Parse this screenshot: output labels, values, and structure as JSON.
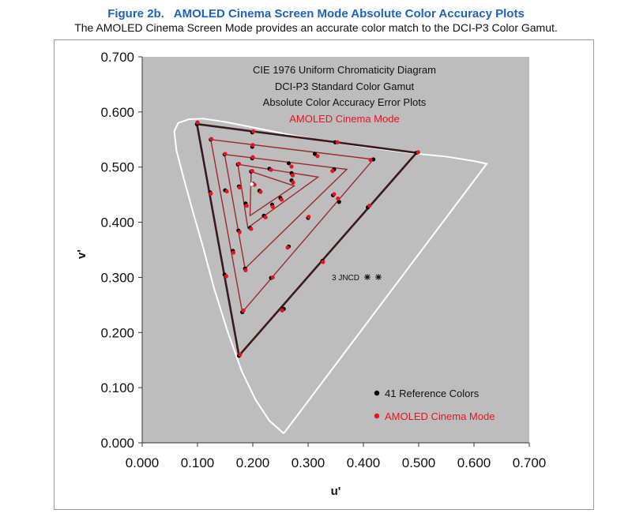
{
  "figure": {
    "title": "Figure 2b.   AMOLED Cinema Screen Mode Absolute Color Accuracy Plots",
    "subtitle": "The AMOLED Cinema Screen Mode provides an accurate color match to the DCI-P3 Color Gamut."
  },
  "colors": {
    "plot_background": "#bdbdbd",
    "reference": "#000000",
    "measured": "#e8141c",
    "locus": "#ffffff",
    "gamut_outline": "#3a1a1a"
  },
  "chart_data": {
    "type": "scatter",
    "title_lines": [
      "CIE 1976 Uniform Chromaticity Diagram",
      "DCI-P3 Standard Color Gamut",
      "Absolute Color Accuracy Error Plots"
    ],
    "title_highlight": "AMOLED Cinema Mode",
    "xlabel": "u'",
    "ylabel": "v'",
    "xlim": [
      0,
      0.7
    ],
    "ylim": [
      0,
      0.7
    ],
    "xticks": [
      "0.000",
      "0.100",
      "0.200",
      "0.300",
      "0.400",
      "0.500",
      "0.600",
      "0.700"
    ],
    "yticks": [
      "0.000",
      "0.100",
      "0.200",
      "0.300",
      "0.400",
      "0.500",
      "0.600",
      "0.700"
    ],
    "annotation": "3 JNCD",
    "legend": {
      "position": "bottom-right",
      "entries": [
        "41 Reference Colors",
        "AMOLED Cinema Mode"
      ]
    },
    "spectral_locus": [
      [
        0.256,
        0.017
      ],
      [
        0.23,
        0.04
      ],
      [
        0.205,
        0.078
      ],
      [
        0.18,
        0.13
      ],
      [
        0.155,
        0.2
      ],
      [
        0.13,
        0.28
      ],
      [
        0.11,
        0.355
      ],
      [
        0.09,
        0.425
      ],
      [
        0.075,
        0.48
      ],
      [
        0.062,
        0.53
      ],
      [
        0.058,
        0.565
      ],
      [
        0.065,
        0.58
      ],
      [
        0.085,
        0.587
      ],
      [
        0.11,
        0.588
      ],
      [
        0.15,
        0.582
      ],
      [
        0.2,
        0.572
      ],
      [
        0.26,
        0.56
      ],
      [
        0.33,
        0.547
      ],
      [
        0.4,
        0.537
      ],
      [
        0.46,
        0.529
      ],
      [
        0.5,
        0.524
      ],
      [
        0.55,
        0.519
      ],
      [
        0.6,
        0.511
      ],
      [
        0.623,
        0.506
      ],
      [
        0.256,
        0.017
      ]
    ],
    "gamut_triangles": [
      [
        [
          0.099,
          0.578
        ],
        [
          0.496,
          0.526
        ],
        [
          0.175,
          0.158
        ]
      ],
      [
        [
          0.124,
          0.55
        ],
        [
          0.418,
          0.514
        ],
        [
          0.181,
          0.237
        ]
      ],
      [
        [
          0.149,
          0.523
        ],
        [
          0.37,
          0.496
        ],
        [
          0.186,
          0.316
        ]
      ],
      [
        [
          0.173,
          0.505
        ],
        [
          0.318,
          0.482
        ],
        [
          0.191,
          0.39
        ]
      ],
      [
        [
          0.197,
          0.492
        ],
        [
          0.275,
          0.466
        ],
        [
          0.195,
          0.412
        ]
      ]
    ],
    "series": [
      {
        "name": "41 Reference Colors",
        "points": [
          [
            0.099,
            0.578
          ],
          [
            0.199,
            0.563
          ],
          [
            0.349,
            0.545
          ],
          [
            0.496,
            0.526
          ],
          [
            0.124,
            0.55
          ],
          [
            0.199,
            0.537
          ],
          [
            0.312,
            0.524
          ],
          [
            0.418,
            0.514
          ],
          [
            0.149,
            0.523
          ],
          [
            0.199,
            0.516
          ],
          [
            0.265,
            0.507
          ],
          [
            0.347,
            0.496
          ],
          [
            0.173,
            0.505
          ],
          [
            0.23,
            0.497
          ],
          [
            0.27,
            0.489
          ],
          [
            0.197,
            0.492
          ],
          [
            0.27,
            0.476
          ],
          [
            0.212,
            0.457
          ],
          [
            0.25,
            0.444
          ],
          [
            0.235,
            0.432
          ],
          [
            0.22,
            0.412
          ],
          [
            0.195,
            0.39
          ],
          [
            0.175,
            0.465
          ],
          [
            0.187,
            0.434
          ],
          [
            0.174,
            0.385
          ],
          [
            0.186,
            0.316
          ],
          [
            0.123,
            0.454
          ],
          [
            0.164,
            0.348
          ],
          [
            0.149,
            0.305
          ],
          [
            0.181,
            0.237
          ],
          [
            0.175,
            0.158
          ],
          [
            0.15,
            0.458
          ],
          [
            0.2,
            0.47
          ],
          [
            0.356,
            0.437
          ],
          [
            0.408,
            0.427
          ],
          [
            0.326,
            0.33
          ],
          [
            0.256,
            0.243
          ],
          [
            0.233,
            0.299
          ],
          [
            0.265,
            0.356
          ],
          [
            0.3,
            0.408
          ],
          [
            0.345,
            0.449
          ]
        ]
      },
      {
        "name": "AMOLED Cinema Mode",
        "points": [
          [
            0.1,
            0.581
          ],
          [
            0.201,
            0.565
          ],
          [
            0.353,
            0.545
          ],
          [
            0.499,
            0.527
          ],
          [
            0.125,
            0.551
          ],
          [
            0.2,
            0.54
          ],
          [
            0.317,
            0.52
          ],
          [
            0.413,
            0.513
          ],
          [
            0.15,
            0.524
          ],
          [
            0.2,
            0.518
          ],
          [
            0.27,
            0.501
          ],
          [
            0.344,
            0.493
          ],
          [
            0.175,
            0.506
          ],
          [
            0.233,
            0.495
          ],
          [
            0.272,
            0.485
          ],
          [
            0.199,
            0.493
          ],
          [
            0.273,
            0.472
          ],
          [
            0.214,
            0.455
          ],
          [
            0.252,
            0.441
          ],
          [
            0.236,
            0.428
          ],
          [
            0.223,
            0.409
          ],
          [
            0.197,
            0.388
          ],
          [
            0.176,
            0.463
          ],
          [
            0.189,
            0.43
          ],
          [
            0.176,
            0.382
          ],
          [
            0.187,
            0.313
          ],
          [
            0.124,
            0.452
          ],
          [
            0.165,
            0.345
          ],
          [
            0.152,
            0.302
          ],
          [
            0.183,
            0.24
          ],
          [
            0.177,
            0.16
          ],
          [
            0.153,
            0.456
          ],
          [
            0.203,
            0.468
          ],
          [
            0.354,
            0.443
          ],
          [
            0.411,
            0.43
          ],
          [
            0.327,
            0.328
          ],
          [
            0.253,
            0.24
          ],
          [
            0.236,
            0.3
          ],
          [
            0.263,
            0.354
          ],
          [
            0.301,
            0.41
          ],
          [
            0.347,
            0.451
          ]
        ]
      }
    ],
    "white_point": [
      0.198,
      0.469
    ]
  }
}
